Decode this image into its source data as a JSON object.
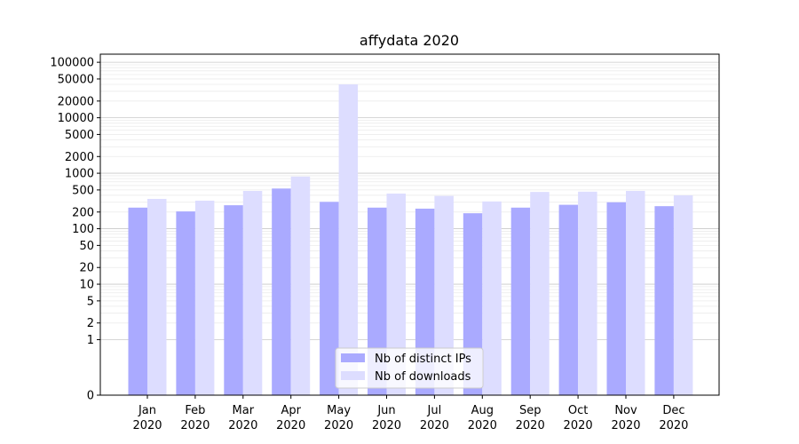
{
  "chart_data": {
    "type": "bar",
    "title": "affydata 2020",
    "categories": [
      [
        "Jan",
        "2020"
      ],
      [
        "Feb",
        "2020"
      ],
      [
        "Mar",
        "2020"
      ],
      [
        "Apr",
        "2020"
      ],
      [
        "May",
        "2020"
      ],
      [
        "Jun",
        "2020"
      ],
      [
        "Jul",
        "2020"
      ],
      [
        "Aug",
        "2020"
      ],
      [
        "Sep",
        "2020"
      ],
      [
        "Oct",
        "2020"
      ],
      [
        "Nov",
        "2020"
      ],
      [
        "Dec",
        "2020"
      ]
    ],
    "yscale": "symlog",
    "ylim": [
      0,
      140000
    ],
    "yticks": [
      0,
      1,
      2,
      5,
      10,
      20,
      50,
      100,
      200,
      500,
      1000,
      2000,
      5000,
      10000,
      20000,
      50000,
      100000
    ],
    "grid": true,
    "legend_position": "bottom-center",
    "series": [
      {
        "name": "Nb of distinct IPs",
        "color": "#aaaaff",
        "values": [
          240,
          205,
          265,
          530,
          305,
          240,
          230,
          190,
          240,
          270,
          300,
          255
        ]
      },
      {
        "name": "Nb of downloads",
        "color": "#ddddff",
        "values": [
          345,
          320,
          480,
          870,
          40000,
          430,
          390,
          310,
          460,
          465,
          480,
          400
        ]
      }
    ]
  }
}
